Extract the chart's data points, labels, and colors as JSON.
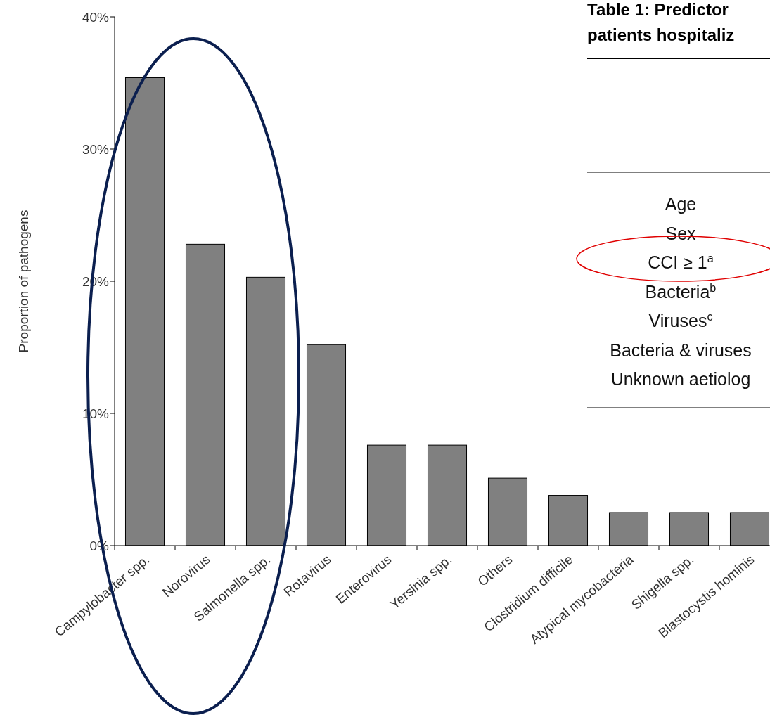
{
  "chart_data": [
    {
      "type": "bar",
      "ylabel": "Proportion of pathogens",
      "categories": [
        "Campylobacter spp.",
        "Norovirus",
        "Salmonella spp.",
        "Rotavirus",
        "Enterovirus",
        "Yersinia spp.",
        "Others",
        "Clostridium difficile",
        "Atypical mycobacteria",
        "Shigella spp.",
        "Blastocystis hominis"
      ],
      "values": [
        35.4,
        22.8,
        20.3,
        15.2,
        7.6,
        7.6,
        5.1,
        3.8,
        2.5,
        2.5,
        2.5
      ],
      "color": "#808080",
      "ylim": [
        0,
        40
      ],
      "yticks": [
        {
          "value": 0,
          "label": "0%"
        },
        {
          "value": 10,
          "label": "10%"
        },
        {
          "value": 20,
          "label": "20%"
        },
        {
          "value": 30,
          "label": "30%"
        },
        {
          "value": 40,
          "label": "40%"
        }
      ]
    },
    {
      "type": "other",
      "title": "Table 1: Predictor",
      "subtitle": "patients hospitaliz",
      "annotations": [
        "Age",
        "Sex",
        "CCI ≥ 1$^{a}$",
        "Bacteria$^{b}$",
        "Viruses$^{c}$",
        "Bacteria & viruses",
        "Unknown aetiolog"
      ]
    }
  ]
}
